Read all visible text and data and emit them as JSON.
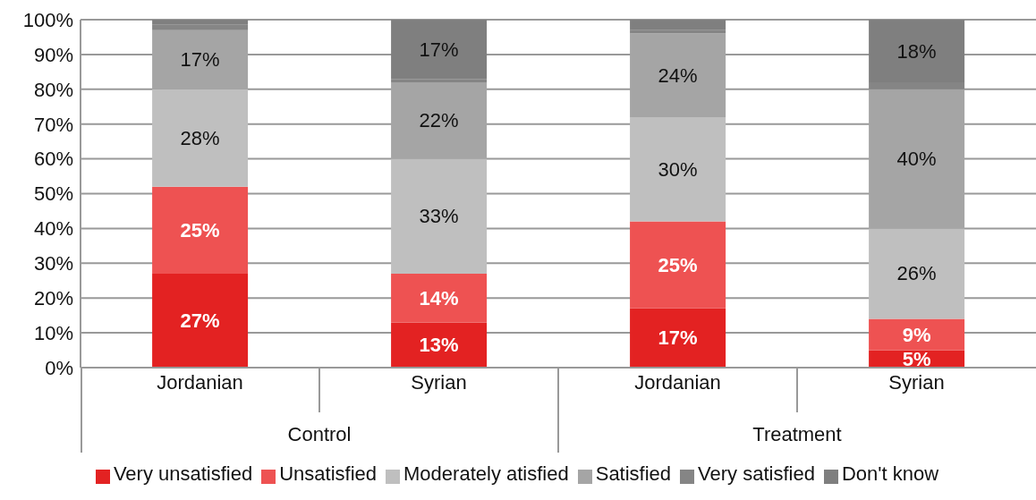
{
  "chart_data": {
    "type": "bar",
    "stacked": true,
    "categories": [
      "Jordanian",
      "Syrian",
      "Jordanian",
      "Syrian"
    ],
    "series": [
      {
        "name": "Very unsatisfied",
        "color": "#e32222",
        "values": [
          27,
          13,
          17,
          5
        ],
        "value_labels": [
          "27%",
          "13%",
          "17%",
          "5%"
        ]
      },
      {
        "name": "Unsatisfied",
        "color": "#ee5252",
        "values": [
          25,
          14,
          25,
          9
        ],
        "value_labels": [
          "25%",
          "14%",
          "25%",
          "9%"
        ]
      },
      {
        "name": "Moderately atisfied",
        "color": "#bfbfbf",
        "values": [
          28,
          33,
          30,
          26
        ],
        "value_labels": [
          "28%",
          "33%",
          "30%",
          "26%"
        ]
      },
      {
        "name": "Satisfied",
        "color": "#a5a5a5",
        "values": [
          17,
          22,
          24,
          40
        ],
        "value_labels": [
          "17%",
          "22%",
          "24%",
          "40%"
        ]
      },
      {
        "name": "Very satisfied",
        "color": "#858585",
        "values": [
          1.5,
          1,
          1,
          2
        ],
        "value_labels": [
          null,
          null,
          null,
          null
        ]
      },
      {
        "name": "Don't know",
        "color": "#7f7f7f",
        "values": [
          1.5,
          17,
          3,
          18
        ],
        "value_labels": [
          null,
          "17%",
          null,
          "18%"
        ]
      }
    ],
    "ylim": [
      0,
      100
    ],
    "yticks": [
      {
        "value": 0,
        "label": "0%"
      },
      {
        "value": 10,
        "label": "10%"
      },
      {
        "value": 20,
        "label": "20%"
      },
      {
        "value": 30,
        "label": "30%"
      },
      {
        "value": 40,
        "label": "40%"
      },
      {
        "value": 50,
        "label": "50%"
      },
      {
        "value": 60,
        "label": "60%"
      },
      {
        "value": 70,
        "label": "70%"
      },
      {
        "value": 80,
        "label": "80%"
      },
      {
        "value": 90,
        "label": "90%"
      },
      {
        "value": 100,
        "label": "100%"
      }
    ],
    "grid": "y",
    "legend": "bottom",
    "annotations": [
      "Control",
      "Treatment"
    ]
  }
}
